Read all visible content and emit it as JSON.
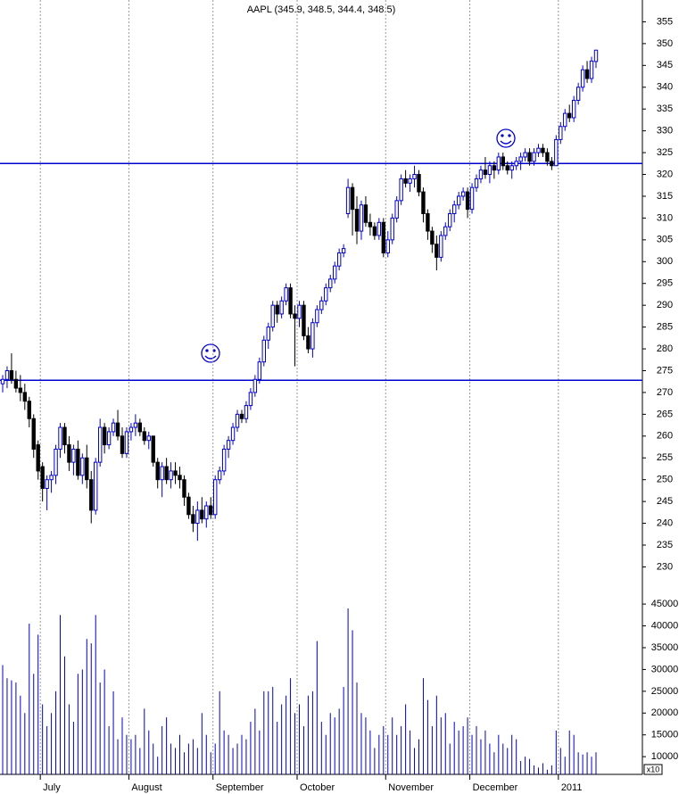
{
  "chart_data": {
    "type": "candlestick",
    "title": "AAPL (345.9, 348.5, 344.4, 348.5)",
    "categories": [
      null,
      null,
      null,
      null,
      null,
      null,
      null,
      null,
      null,
      "July",
      null,
      null,
      null,
      null,
      null,
      null,
      null,
      null,
      null,
      null,
      null,
      null,
      null,
      null,
      null,
      null,
      null,
      null,
      null,
      "August",
      null,
      null,
      null,
      null,
      null,
      null,
      null,
      null,
      null,
      null,
      null,
      null,
      null,
      null,
      null,
      null,
      null,
      null,
      "September",
      null,
      null,
      null,
      null,
      null,
      null,
      null,
      null,
      null,
      null,
      null,
      null,
      null,
      null,
      null,
      null,
      null,
      null,
      "October",
      null,
      null,
      null,
      null,
      null,
      null,
      null,
      null,
      null,
      null,
      null,
      null,
      null,
      null,
      null,
      null,
      null,
      null,
      null,
      "November",
      null,
      null,
      null,
      null,
      null,
      null,
      null,
      null,
      null,
      null,
      null,
      null,
      null,
      null,
      null,
      null,
      null,
      null,
      "December",
      null,
      null,
      null,
      null,
      null,
      null,
      null,
      null,
      null,
      null,
      null,
      null,
      null,
      null,
      null,
      null,
      null,
      null,
      null,
      "2011",
      null,
      null,
      null,
      null,
      null,
      null,
      null,
      null
    ],
    "values": [
      [
        272,
        274,
        270,
        273
      ],
      [
        273,
        276,
        271,
        275
      ],
      [
        275,
        279,
        272,
        273
      ],
      [
        273,
        275,
        270,
        271
      ],
      [
        271,
        274,
        268,
        270
      ],
      [
        270,
        272,
        266,
        268
      ],
      [
        268,
        269,
        262,
        264
      ],
      [
        264,
        265,
        255,
        257
      ],
      [
        258,
        259,
        250,
        252
      ],
      [
        253,
        254,
        245,
        248
      ],
      [
        248,
        251,
        243,
        250
      ],
      [
        250,
        252,
        247,
        251
      ],
      [
        251,
        258,
        249,
        257
      ],
      [
        257,
        263,
        255,
        262
      ],
      [
        262,
        263,
        256,
        258
      ],
      [
        258,
        260,
        252,
        254
      ],
      [
        254,
        258,
        251,
        257
      ],
      [
        257,
        259,
        250,
        251
      ],
      [
        251,
        256,
        249,
        255
      ],
      [
        255,
        258,
        248,
        250
      ],
      [
        250,
        252,
        240,
        243
      ],
      [
        243,
        255,
        242,
        254
      ],
      [
        254,
        264,
        253,
        262
      ],
      [
        262,
        263,
        256,
        258
      ],
      [
        258,
        262,
        257,
        261
      ],
      [
        261,
        264,
        260,
        263
      ],
      [
        263,
        266,
        259,
        260
      ],
      [
        260,
        262,
        255,
        256
      ],
      [
        256,
        262,
        255,
        261
      ],
      [
        261,
        263,
        259,
        262
      ],
      [
        262,
        265,
        260,
        263
      ],
      [
        263,
        264,
        260,
        261
      ],
      [
        261,
        262,
        258,
        259
      ],
      [
        259,
        261,
        257,
        260
      ],
      [
        260,
        260,
        253,
        254
      ],
      [
        254,
        255,
        248,
        250
      ],
      [
        250,
        254,
        246,
        253
      ],
      [
        253,
        255,
        249,
        250
      ],
      [
        250,
        254,
        248,
        252
      ],
      [
        252,
        254,
        249,
        251
      ],
      [
        251,
        253,
        248,
        250
      ],
      [
        250,
        251,
        244,
        246
      ],
      [
        246,
        247,
        241,
        242
      ],
      [
        242,
        244,
        238,
        240
      ],
      [
        240,
        245,
        236,
        243
      ],
      [
        243,
        246,
        240,
        241
      ],
      [
        241,
        245,
        239,
        244
      ],
      [
        244,
        246,
        241,
        242
      ],
      [
        242,
        251,
        241,
        250
      ],
      [
        250,
        253,
        249,
        252
      ],
      [
        252,
        258,
        251,
        257
      ],
      [
        257,
        260,
        255,
        259
      ],
      [
        259,
        263,
        258,
        262
      ],
      [
        262,
        266,
        261,
        265
      ],
      [
        265,
        266,
        263,
        264
      ],
      [
        264,
        268,
        263,
        267
      ],
      [
        267,
        271,
        266,
        270
      ],
      [
        270,
        274,
        269,
        273
      ],
      [
        273,
        278,
        272,
        277
      ],
      [
        277,
        283,
        276,
        282
      ],
      [
        282,
        286,
        280,
        285
      ],
      [
        285,
        291,
        284,
        290
      ],
      [
        290,
        291,
        286,
        288
      ],
      [
        288,
        292,
        287,
        291
      ],
      [
        291,
        295,
        290,
        294
      ],
      [
        294,
        295,
        287,
        288
      ],
      [
        288,
        290,
        276,
        287
      ],
      [
        287,
        291,
        285,
        290
      ],
      [
        290,
        291,
        282,
        283
      ],
      [
        283,
        285,
        279,
        280
      ],
      [
        280,
        287,
        278,
        286
      ],
      [
        286,
        290,
        285,
        289
      ],
      [
        289,
        292,
        288,
        291
      ],
      [
        291,
        295,
        290,
        294
      ],
      [
        294,
        297,
        293,
        296
      ],
      [
        296,
        300,
        295,
        299
      ],
      [
        299,
        303,
        298,
        302
      ],
      [
        302,
        304,
        301,
        303
      ],
      [
        311,
        319,
        310,
        317
      ],
      [
        317,
        318,
        306,
        312
      ],
      [
        312,
        315,
        304,
        307
      ],
      [
        307,
        314,
        305,
        313
      ],
      [
        313,
        315,
        308,
        309
      ],
      [
        309,
        311,
        306,
        308
      ],
      [
        308,
        309,
        305,
        306
      ],
      [
        306,
        310,
        305,
        309
      ],
      [
        309,
        310,
        301,
        302
      ],
      [
        302,
        307,
        301,
        305
      ],
      [
        305,
        311,
        304,
        310
      ],
      [
        310,
        315,
        309,
        314
      ],
      [
        314,
        320,
        313,
        319
      ],
      [
        319,
        321,
        317,
        318
      ],
      [
        318,
        320,
        316,
        319
      ],
      [
        319,
        322,
        317,
        320
      ],
      [
        320,
        321,
        315,
        316
      ],
      [
        316,
        317,
        309,
        311
      ],
      [
        311,
        312,
        305,
        307
      ],
      [
        307,
        308,
        302,
        304
      ],
      [
        304,
        306,
        298,
        301
      ],
      [
        301,
        307,
        300,
        306
      ],
      [
        306,
        309,
        305,
        308
      ],
      [
        308,
        312,
        307,
        311
      ],
      [
        311,
        314,
        309,
        313
      ],
      [
        313,
        316,
        312,
        315
      ],
      [
        315,
        317,
        314,
        316
      ],
      [
        316,
        317,
        310,
        312
      ],
      [
        312,
        318,
        311,
        317
      ],
      [
        317,
        320,
        316,
        319
      ],
      [
        319,
        322,
        318,
        321
      ],
      [
        321,
        324,
        319,
        320
      ],
      [
        320,
        323,
        318,
        322
      ],
      [
        322,
        323,
        319,
        321
      ],
      [
        321,
        325,
        320,
        324
      ],
      [
        324,
        325,
        321,
        322
      ],
      [
        322,
        323,
        320,
        321
      ],
      [
        321,
        323,
        319,
        322
      ],
      [
        322,
        324,
        321,
        323
      ],
      [
        323,
        325,
        321,
        324
      ],
      [
        324,
        326,
        323,
        325
      ],
      [
        325,
        326,
        322,
        323
      ],
      [
        323,
        326,
        322,
        325
      ],
      [
        325,
        327,
        324,
        326
      ],
      [
        326,
        327,
        324,
        325
      ],
      [
        325,
        326,
        322,
        323
      ],
      [
        323,
        324,
        321,
        322
      ],
      [
        322,
        329,
        322,
        328
      ],
      [
        328,
        332,
        327,
        331
      ],
      [
        331,
        335,
        330,
        334
      ],
      [
        334,
        336,
        332,
        333
      ],
      [
        333,
        338,
        332,
        337
      ],
      [
        337,
        341,
        336,
        340
      ],
      [
        340,
        345,
        339,
        344
      ],
      [
        344,
        346,
        341,
        342
      ],
      [
        342,
        347,
        341,
        346
      ],
      [
        345.9,
        348.5,
        344.4,
        348.5
      ]
    ],
    "up_color": "#0000cc",
    "down_color": "#000000",
    "ylim": [
      226,
      360
    ],
    "yticks": [
      230,
      235,
      240,
      245,
      250,
      255,
      260,
      265,
      270,
      275,
      280,
      285,
      290,
      295,
      300,
      305,
      310,
      315,
      320,
      325,
      330,
      335,
      340,
      345,
      350,
      355
    ],
    "horizontal_lines": [
      322.5,
      272.8
    ],
    "line_color": "#0000cc",
    "volume": {
      "values": [
        31000,
        28000,
        27500,
        27000,
        24000,
        20000,
        40500,
        29000,
        38000,
        22000,
        17000,
        20000,
        25000,
        42500,
        33000,
        22000,
        18000,
        29000,
        30000,
        37000,
        36000,
        42500,
        27000,
        30000,
        17000,
        25000,
        14000,
        19000,
        15000,
        14000,
        15000,
        12000,
        21000,
        16000,
        13000,
        10000,
        17000,
        19000,
        13000,
        12000,
        15000,
        11000,
        13000,
        14000,
        12000,
        20000,
        15000,
        11000,
        13000,
        25000,
        16000,
        15000,
        12000,
        13000,
        15000,
        14000,
        18000,
        21000,
        16000,
        25000,
        25000,
        26000,
        18000,
        22000,
        24000,
        28000,
        20000,
        22000,
        17000,
        24000,
        25000,
        36500,
        18000,
        15000,
        20000,
        19000,
        21000,
        26000,
        44000,
        39000,
        27000,
        20000,
        19000,
        16000,
        12000,
        15000,
        17000,
        15000,
        19000,
        15000,
        17000,
        22000,
        16000,
        12000,
        14000,
        28000,
        23000,
        17000,
        24000,
        19000,
        20000,
        13000,
        18000,
        16000,
        17000,
        19000,
        15000,
        17000,
        14000,
        16000,
        13000,
        11000,
        15000,
        13000,
        12000,
        15000,
        14000,
        9000,
        10000,
        9500,
        8000,
        7500,
        8500,
        7000,
        8000,
        16000,
        12000,
        10000,
        16000,
        15000,
        11000,
        10500,
        11000,
        10000,
        11000
      ],
      "color": "#0000cc",
      "ylim": [
        6000,
        48500
      ],
      "yticks": [
        10000,
        15000,
        20000,
        25000,
        30000,
        35000,
        40000,
        45000
      ],
      "multiplier_label": "x10"
    }
  }
}
